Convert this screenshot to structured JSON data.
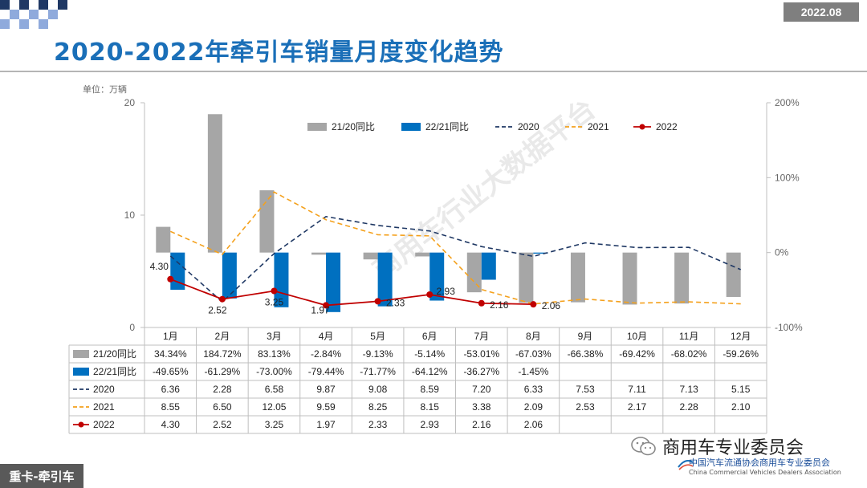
{
  "header": {
    "date_badge": "2022.08",
    "title": "2020-2022年牵引车销量月度变化趋势"
  },
  "unit_label": "单位：万辆",
  "footer": {
    "tag": "重卡-牵引车",
    "wechat_name": "商用车专业委员会",
    "assoc_cn": "中国汽车流通协会商用车专业委员会",
    "assoc_en": "China Commercial Vehicles Dealers Association"
  },
  "watermark_text": "商用车行业大数据平台",
  "colors": {
    "title": "#1a6fb8",
    "bar_21_20": "#a6a6a6",
    "bar_22_21": "#0070c0",
    "line_2020": "#1f3864",
    "line_2021": "#f4a11d",
    "line_2022": "#c00000"
  },
  "chart_data": {
    "type": "bar+line",
    "categories": [
      "1月",
      "2月",
      "3月",
      "4月",
      "5月",
      "6月",
      "7月",
      "8月",
      "9月",
      "10月",
      "11月",
      "12月"
    ],
    "left_axis": {
      "range": [
        0,
        20
      ],
      "ticks": [
        "0",
        "10",
        "20"
      ]
    },
    "right_axis": {
      "range": [
        -100,
        200
      ],
      "ticks": [
        "-100%",
        "0%",
        "100%",
        "200%"
      ]
    },
    "legend": [
      "21/20同比",
      "22/21同比",
      "2020",
      "2021",
      "2022"
    ],
    "legend_position": "top",
    "bar_series": [
      {
        "name": "21/20同比",
        "axis": "right",
        "values": [
          34.34,
          184.72,
          83.13,
          -2.84,
          -9.13,
          -5.14,
          -53.01,
          -67.03,
          -66.38,
          -69.42,
          -68.02,
          -59.26
        ],
        "labels": [
          "34.34%",
          "184.72%",
          "83.13%",
          "-2.84%",
          "-9.13%",
          "-5.14%",
          "-53.01%",
          "-67.03%",
          "-66.38%",
          "-69.42%",
          "-68.02%",
          "-59.26%"
        ]
      },
      {
        "name": "22/21同比",
        "axis": "right",
        "values": [
          -49.65,
          -61.29,
          -73.0,
          -79.44,
          -71.77,
          -64.12,
          -36.27,
          -1.45,
          null,
          null,
          null,
          null
        ],
        "labels": [
          "-49.65%",
          "-61.29%",
          "-73.00%",
          "-79.44%",
          "-71.77%",
          "-64.12%",
          "-36.27%",
          "-1.45%",
          "",
          "",
          "",
          ""
        ]
      }
    ],
    "line_series": [
      {
        "name": "2020",
        "axis": "left",
        "style": "dashed",
        "values": [
          6.36,
          2.28,
          6.58,
          9.87,
          9.08,
          8.59,
          7.2,
          6.33,
          7.53,
          7.11,
          7.13,
          5.15
        ],
        "labels": [
          "6.36",
          "2.28",
          "6.58",
          "9.87",
          "9.08",
          "8.59",
          "7.20",
          "6.33",
          "7.53",
          "7.11",
          "7.13",
          "5.15"
        ]
      },
      {
        "name": "2021",
        "axis": "left",
        "style": "dashed",
        "values": [
          8.55,
          6.5,
          12.05,
          9.59,
          8.25,
          8.15,
          3.38,
          2.09,
          2.53,
          2.17,
          2.28,
          2.1
        ],
        "labels": [
          "8.55",
          "6.50",
          "12.05",
          "9.59",
          "8.25",
          "8.15",
          "3.38",
          "2.09",
          "2.53",
          "2.17",
          "2.28",
          "2.10"
        ]
      },
      {
        "name": "2022",
        "axis": "left",
        "style": "solid-marker",
        "values": [
          4.3,
          2.52,
          3.25,
          1.97,
          2.33,
          2.93,
          2.16,
          2.06,
          null,
          null,
          null,
          null
        ],
        "labels": [
          "4.30",
          "2.52",
          "3.25",
          "1.97",
          "2.33",
          "2.93",
          "2.16",
          "2.06",
          "",
          "",
          "",
          ""
        ]
      }
    ],
    "point_labels_2022": [
      "4.30",
      "2.52",
      "3.25",
      "1.97",
      "2.33",
      "2.93",
      "2.16",
      "2.06"
    ]
  }
}
